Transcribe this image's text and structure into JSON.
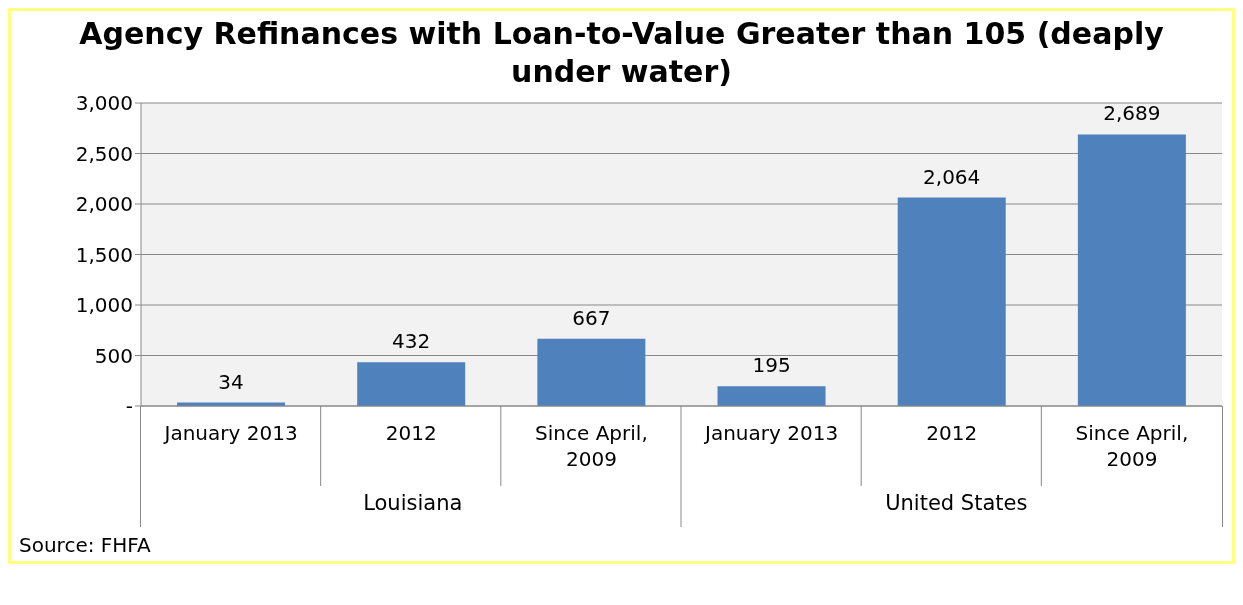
{
  "chart_data": {
    "type": "bar",
    "title": "Agency Refinances with Loan-to-Value Greater than 105 (deaply under water)",
    "categories": [
      "January 2013",
      "2012",
      "Since April, 2009",
      "January 2013",
      "2012",
      "Since April, 2009"
    ],
    "values": [
      34,
      432,
      667,
      195,
      2064,
      2689
    ],
    "value_labels": [
      "34",
      "432",
      "667",
      "195",
      "2,064",
      "2,689"
    ],
    "color": "#4f81bd",
    "ylim": [
      0,
      3000
    ],
    "yticks": [
      {
        "value": 0,
        "label": "-"
      },
      {
        "value": 500,
        "label": "500"
      },
      {
        "value": 1000,
        "label": "1,000"
      },
      {
        "value": 1500,
        "label": "1,500"
      },
      {
        "value": 2000,
        "label": "2,000"
      },
      {
        "value": 2500,
        "label": "2,500"
      },
      {
        "value": 3000,
        "label": "3,000"
      }
    ],
    "grid": "y",
    "annotations": [
      "Louisiana",
      "United States",
      "Source: FHFA"
    ]
  }
}
